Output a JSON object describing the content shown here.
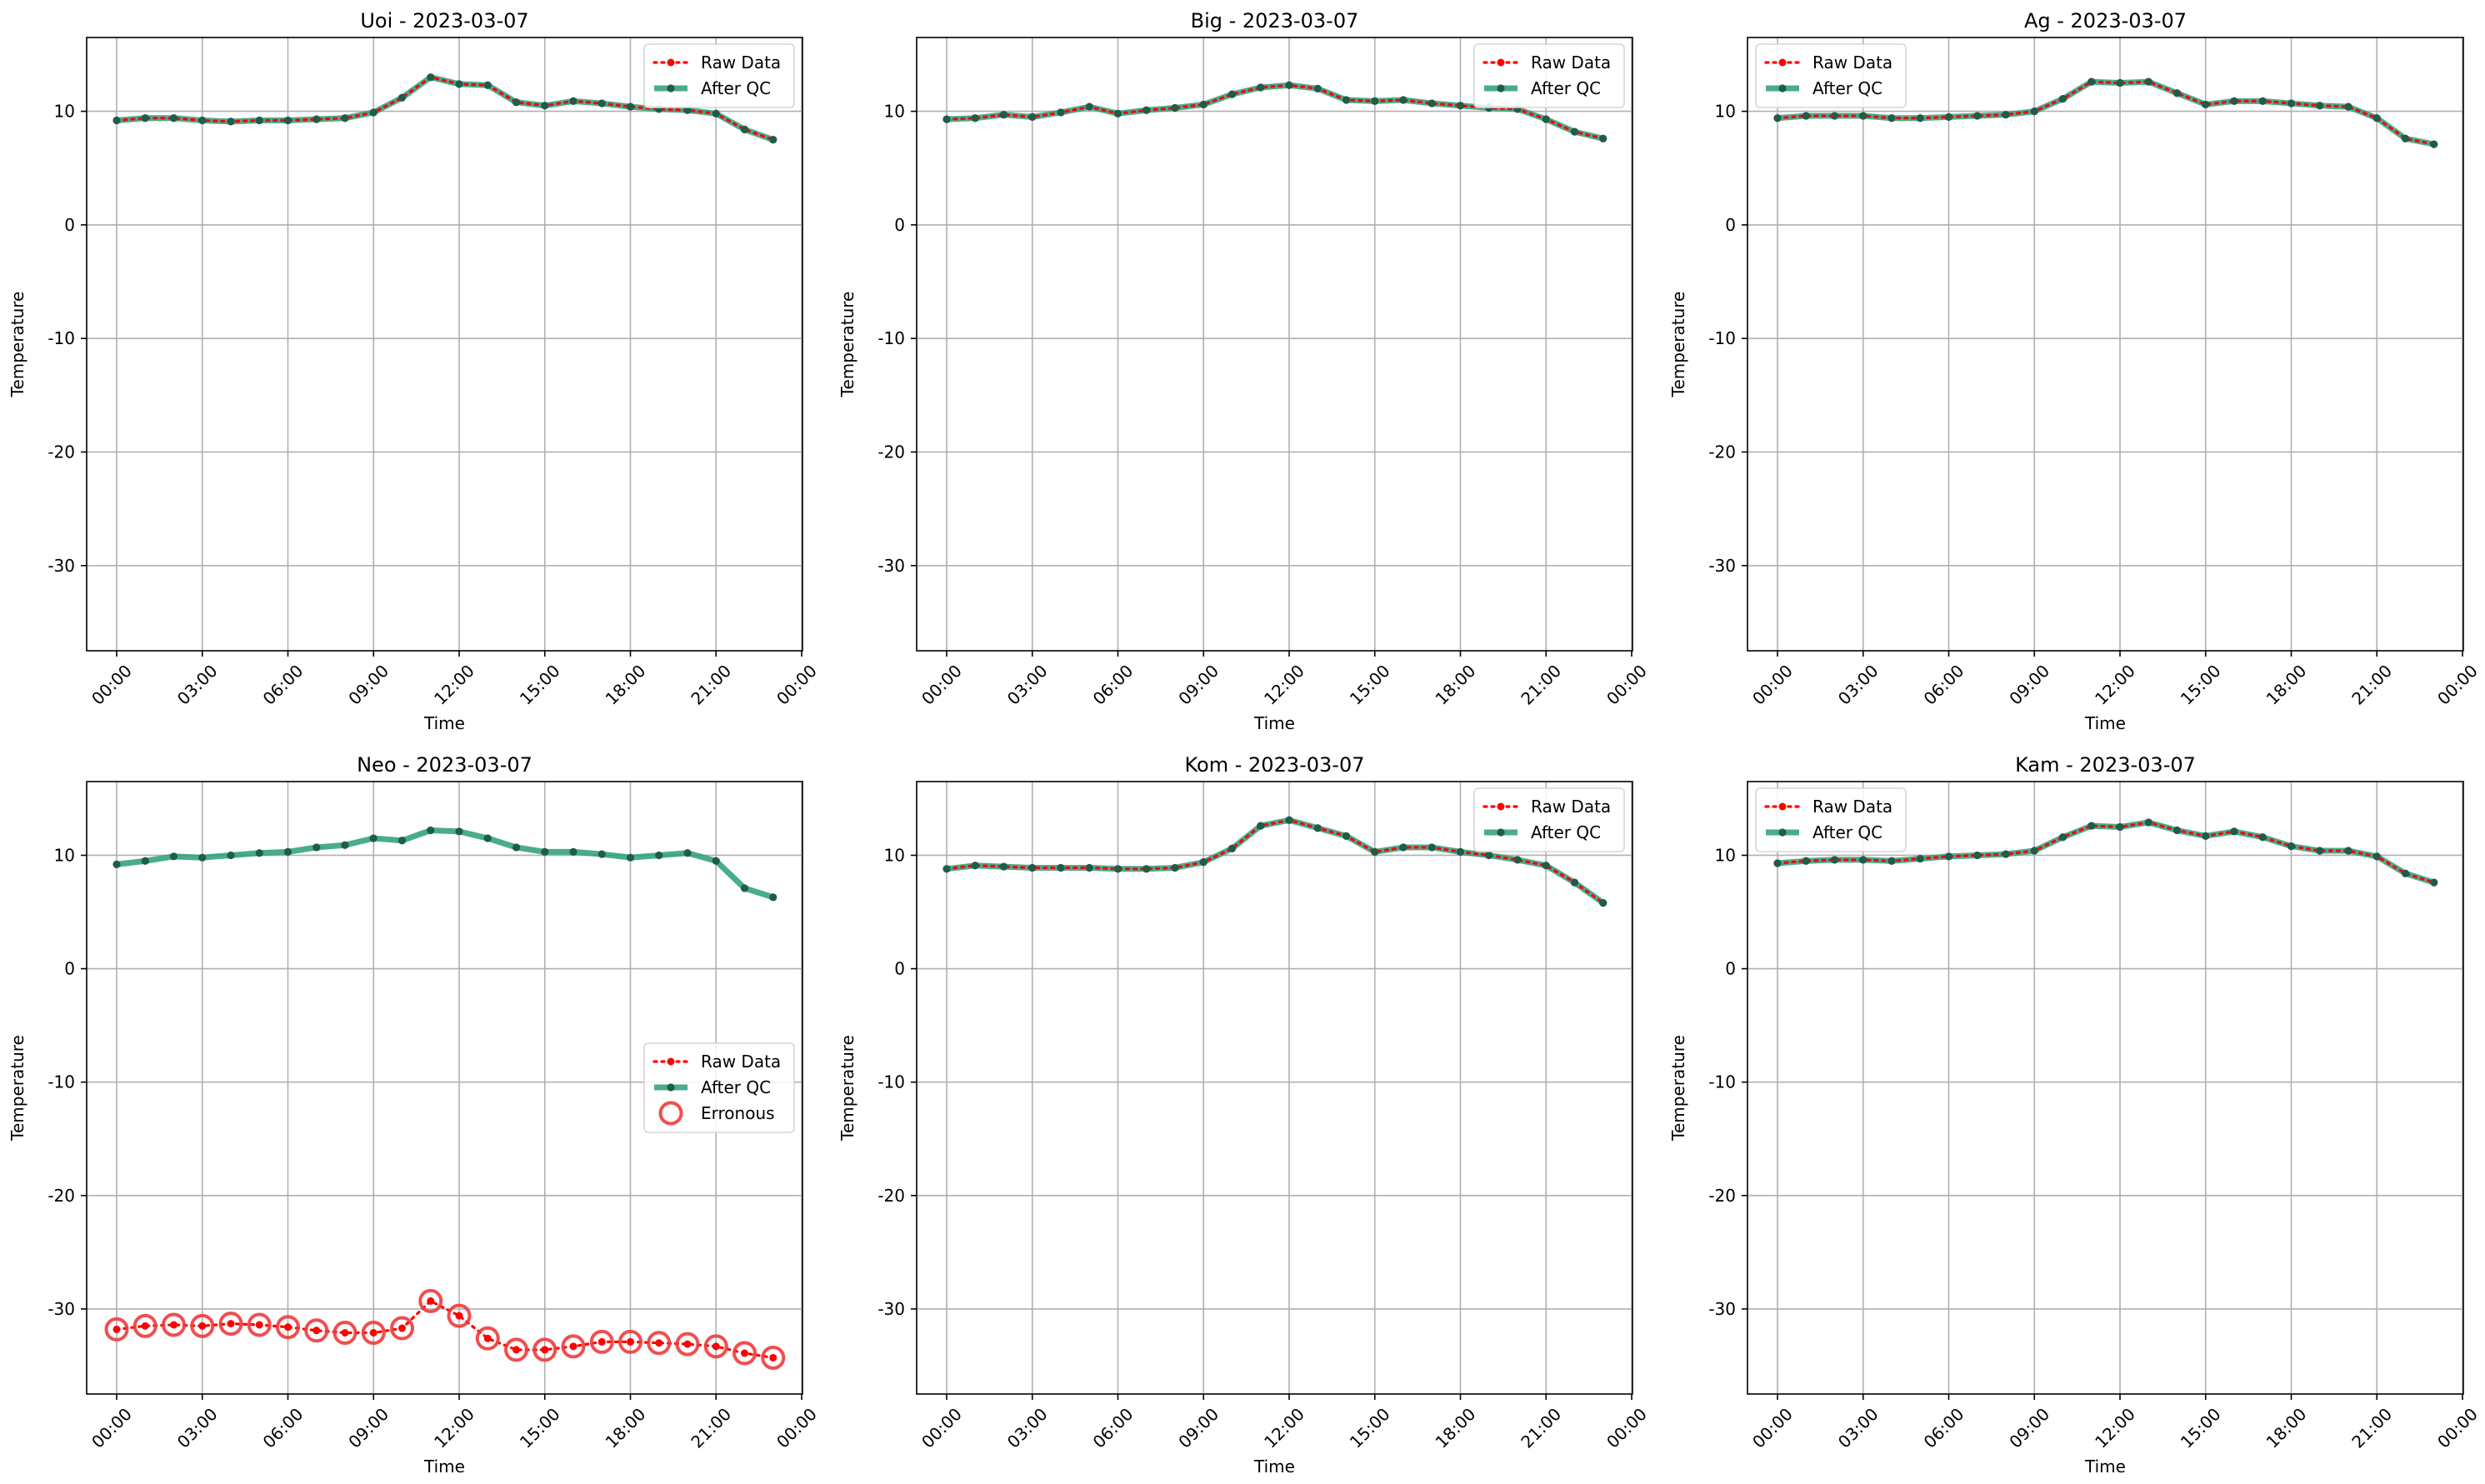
{
  "figure": {
    "colors": {
      "raw": "#ff0000",
      "qc": "#2a9d7a",
      "qc_marker": "#1f5c4a",
      "err": "#ef3b3b",
      "grid": "#b0b0b0",
      "axes": "#000000"
    }
  },
  "chart_data": [
    {
      "type": "line",
      "title": "Uoi - 2023-03-07",
      "xlabel": "Time",
      "ylabel": "Temperature",
      "x_ticks": [
        "00:00",
        "03:00",
        "06:00",
        "09:00",
        "12:00",
        "15:00",
        "18:00",
        "21:00",
        "00:00"
      ],
      "y_ticks": [
        10,
        0,
        -10,
        -20,
        -30
      ],
      "ylim": [
        -37.5,
        16.5
      ],
      "grid": true,
      "legend": {
        "position": "upper right",
        "entries": [
          "Raw Data",
          "After QC"
        ]
      },
      "x": [
        "00:00",
        "01:00",
        "02:00",
        "03:00",
        "04:00",
        "05:00",
        "06:00",
        "07:00",
        "08:00",
        "09:00",
        "10:00",
        "11:00",
        "12:00",
        "13:00",
        "14:00",
        "15:00",
        "16:00",
        "17:00",
        "18:00",
        "19:00",
        "20:00",
        "21:00",
        "22:00",
        "23:00"
      ],
      "series": [
        {
          "name": "Raw Data",
          "values": [
            9.2,
            9.4,
            9.4,
            9.2,
            9.1,
            9.2,
            9.2,
            9.3,
            9.4,
            9.9,
            11.2,
            13.0,
            12.4,
            12.3,
            10.8,
            10.5,
            10.9,
            10.7,
            10.4,
            10.2,
            10.1,
            9.8,
            8.4,
            7.5
          ]
        },
        {
          "name": "After QC",
          "values": [
            9.2,
            9.4,
            9.4,
            9.2,
            9.1,
            9.2,
            9.2,
            9.3,
            9.4,
            9.9,
            11.2,
            13.0,
            12.4,
            12.3,
            10.8,
            10.5,
            10.9,
            10.7,
            10.4,
            10.2,
            10.1,
            9.8,
            8.4,
            7.5
          ]
        }
      ]
    },
    {
      "type": "line",
      "title": "Big - 2023-03-07",
      "xlabel": "Time",
      "ylabel": "Temperature",
      "x_ticks": [
        "00:00",
        "03:00",
        "06:00",
        "09:00",
        "12:00",
        "15:00",
        "18:00",
        "21:00",
        "00:00"
      ],
      "y_ticks": [
        10,
        0,
        -10,
        -20,
        -30
      ],
      "ylim": [
        -37.5,
        16.5
      ],
      "grid": true,
      "legend": {
        "position": "upper right",
        "entries": [
          "Raw Data",
          "After QC"
        ]
      },
      "x": [
        "00:00",
        "01:00",
        "02:00",
        "03:00",
        "04:00",
        "05:00",
        "06:00",
        "07:00",
        "08:00",
        "09:00",
        "10:00",
        "11:00",
        "12:00",
        "13:00",
        "14:00",
        "15:00",
        "16:00",
        "17:00",
        "18:00",
        "19:00",
        "20:00",
        "21:00",
        "22:00",
        "23:00"
      ],
      "series": [
        {
          "name": "Raw Data",
          "values": [
            9.3,
            9.4,
            9.7,
            9.5,
            9.9,
            10.4,
            9.8,
            10.1,
            10.3,
            10.6,
            11.5,
            12.1,
            12.3,
            12.0,
            11.0,
            10.9,
            11.0,
            10.7,
            10.5,
            10.3,
            10.2,
            9.3,
            8.2,
            7.6
          ]
        },
        {
          "name": "After QC",
          "values": [
            9.3,
            9.4,
            9.7,
            9.5,
            9.9,
            10.4,
            9.8,
            10.1,
            10.3,
            10.6,
            11.5,
            12.1,
            12.3,
            12.0,
            11.0,
            10.9,
            11.0,
            10.7,
            10.5,
            10.3,
            10.2,
            9.3,
            8.2,
            7.6
          ]
        }
      ]
    },
    {
      "type": "line",
      "title": "Ag - 2023-03-07",
      "xlabel": "Time",
      "ylabel": "Temperature",
      "x_ticks": [
        "00:00",
        "03:00",
        "06:00",
        "09:00",
        "12:00",
        "15:00",
        "18:00",
        "21:00",
        "00:00"
      ],
      "y_ticks": [
        10,
        0,
        -10,
        -20,
        -30
      ],
      "ylim": [
        -37.5,
        16.5
      ],
      "grid": true,
      "legend": {
        "position": "upper left",
        "entries": [
          "Raw Data",
          "After QC"
        ]
      },
      "x": [
        "00:00",
        "01:00",
        "02:00",
        "03:00",
        "04:00",
        "05:00",
        "06:00",
        "07:00",
        "08:00",
        "09:00",
        "10:00",
        "11:00",
        "12:00",
        "13:00",
        "14:00",
        "15:00",
        "16:00",
        "17:00",
        "18:00",
        "19:00",
        "20:00",
        "21:00",
        "22:00",
        "23:00"
      ],
      "series": [
        {
          "name": "Raw Data",
          "values": [
            9.4,
            9.6,
            9.6,
            9.6,
            9.4,
            9.4,
            9.5,
            9.6,
            9.7,
            10.0,
            11.1,
            12.6,
            12.5,
            12.6,
            11.6,
            10.6,
            10.9,
            10.9,
            10.7,
            10.5,
            10.4,
            9.4,
            7.6,
            7.1
          ]
        },
        {
          "name": "After QC",
          "values": [
            9.4,
            9.6,
            9.6,
            9.6,
            9.4,
            9.4,
            9.5,
            9.6,
            9.7,
            10.0,
            11.1,
            12.6,
            12.5,
            12.6,
            11.6,
            10.6,
            10.9,
            10.9,
            10.7,
            10.5,
            10.4,
            9.4,
            7.6,
            7.1
          ]
        }
      ]
    },
    {
      "type": "line",
      "title": "Neo - 2023-03-07",
      "xlabel": "Time",
      "ylabel": "Temperature",
      "x_ticks": [
        "00:00",
        "03:00",
        "06:00",
        "09:00",
        "12:00",
        "15:00",
        "18:00",
        "21:00",
        "00:00"
      ],
      "y_ticks": [
        10,
        0,
        -10,
        -20,
        -30
      ],
      "ylim": [
        -37.5,
        16.5
      ],
      "grid": true,
      "legend": {
        "position": "center right",
        "entries": [
          "Raw Data",
          "After QC",
          "Erronous"
        ]
      },
      "x": [
        "00:00",
        "01:00",
        "02:00",
        "03:00",
        "04:00",
        "05:00",
        "06:00",
        "07:00",
        "08:00",
        "09:00",
        "10:00",
        "11:00",
        "12:00",
        "13:00",
        "14:00",
        "15:00",
        "16:00",
        "17:00",
        "18:00",
        "19:00",
        "20:00",
        "21:00",
        "22:00",
        "23:00"
      ],
      "series": [
        {
          "name": "Raw Data",
          "values": [
            -31.8,
            -31.5,
            -31.4,
            -31.5,
            -31.3,
            -31.4,
            -31.6,
            -31.9,
            -32.1,
            -32.1,
            -31.7,
            -29.3,
            -30.6,
            -32.6,
            -33.6,
            -33.6,
            -33.3,
            -32.9,
            -32.9,
            -33.0,
            -33.1,
            -33.3,
            -33.9,
            -34.3
          ]
        },
        {
          "name": "After QC",
          "values": [
            9.2,
            9.5,
            9.9,
            9.8,
            10.0,
            10.2,
            10.3,
            10.7,
            10.9,
            11.5,
            11.3,
            12.2,
            12.1,
            11.5,
            10.7,
            10.3,
            10.3,
            10.1,
            9.8,
            10.0,
            10.2,
            9.5,
            7.1,
            6.3
          ]
        },
        {
          "name": "Erronous",
          "values": [
            -31.8,
            -31.5,
            -31.4,
            -31.5,
            -31.3,
            -31.4,
            -31.6,
            -31.9,
            -32.1,
            -32.1,
            -31.7,
            -29.3,
            -30.6,
            -32.6,
            -33.6,
            -33.6,
            -33.3,
            -32.9,
            -32.9,
            -33.0,
            -33.1,
            -33.3,
            -33.9,
            -34.3
          ]
        }
      ]
    },
    {
      "type": "line",
      "title": "Kom - 2023-03-07",
      "xlabel": "Time",
      "ylabel": "Temperature",
      "x_ticks": [
        "00:00",
        "03:00",
        "06:00",
        "09:00",
        "12:00",
        "15:00",
        "18:00",
        "21:00",
        "00:00"
      ],
      "y_ticks": [
        10,
        0,
        -10,
        -20,
        -30
      ],
      "ylim": [
        -37.5,
        16.5
      ],
      "grid": true,
      "legend": {
        "position": "upper right",
        "entries": [
          "Raw Data",
          "After QC"
        ]
      },
      "x": [
        "00:00",
        "01:00",
        "02:00",
        "03:00",
        "04:00",
        "05:00",
        "06:00",
        "07:00",
        "08:00",
        "09:00",
        "10:00",
        "11:00",
        "12:00",
        "13:00",
        "14:00",
        "15:00",
        "16:00",
        "17:00",
        "18:00",
        "19:00",
        "20:00",
        "21:00",
        "22:00",
        "23:00"
      ],
      "series": [
        {
          "name": "Raw Data",
          "values": [
            8.8,
            9.1,
            9.0,
            8.9,
            8.9,
            8.9,
            8.8,
            8.8,
            8.9,
            9.4,
            10.6,
            12.6,
            13.1,
            12.4,
            11.7,
            10.3,
            10.7,
            10.7,
            10.3,
            10.0,
            9.6,
            9.1,
            7.6,
            5.8
          ]
        },
        {
          "name": "After QC",
          "values": [
            8.8,
            9.1,
            9.0,
            8.9,
            8.9,
            8.9,
            8.8,
            8.8,
            8.9,
            9.4,
            10.6,
            12.6,
            13.1,
            12.4,
            11.7,
            10.3,
            10.7,
            10.7,
            10.3,
            10.0,
            9.6,
            9.1,
            7.6,
            5.8
          ]
        }
      ]
    },
    {
      "type": "line",
      "title": "Kam - 2023-03-07",
      "xlabel": "Time",
      "ylabel": "Temperature",
      "x_ticks": [
        "00:00",
        "03:00",
        "06:00",
        "09:00",
        "12:00",
        "15:00",
        "18:00",
        "21:00",
        "00:00"
      ],
      "y_ticks": [
        10,
        0,
        -10,
        -20,
        -30
      ],
      "ylim": [
        -37.5,
        16.5
      ],
      "grid": true,
      "legend": {
        "position": "upper left",
        "entries": [
          "Raw Data",
          "After QC"
        ]
      },
      "x": [
        "00:00",
        "01:00",
        "02:00",
        "03:00",
        "04:00",
        "05:00",
        "06:00",
        "07:00",
        "08:00",
        "09:00",
        "10:00",
        "11:00",
        "12:00",
        "13:00",
        "14:00",
        "15:00",
        "16:00",
        "17:00",
        "18:00",
        "19:00",
        "20:00",
        "21:00",
        "22:00",
        "23:00"
      ],
      "series": [
        {
          "name": "Raw Data",
          "values": [
            9.3,
            9.5,
            9.6,
            9.6,
            9.5,
            9.7,
            9.9,
            10.0,
            10.1,
            10.4,
            11.6,
            12.6,
            12.5,
            12.9,
            12.2,
            11.7,
            12.1,
            11.6,
            10.8,
            10.4,
            10.4,
            9.9,
            8.4,
            7.6
          ]
        },
        {
          "name": "After QC",
          "values": [
            9.3,
            9.5,
            9.6,
            9.6,
            9.5,
            9.7,
            9.9,
            10.0,
            10.1,
            10.4,
            11.6,
            12.6,
            12.5,
            12.9,
            12.2,
            11.7,
            12.1,
            11.6,
            10.8,
            10.4,
            10.4,
            9.9,
            8.4,
            7.6
          ]
        }
      ]
    }
  ]
}
